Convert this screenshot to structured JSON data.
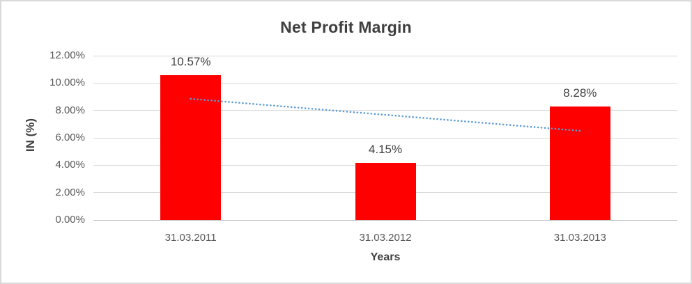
{
  "window": {
    "background": "#FFFFFF",
    "border_color": "#D9D9D9"
  },
  "chart_data": {
    "type": "bar",
    "title": "Net Profit Margin",
    "xlabel": "Years",
    "ylabel": "IN (%)",
    "categories": [
      "31.03.2011",
      "31.03.2012",
      "31.03.2013"
    ],
    "values": [
      10.57,
      4.15,
      8.28
    ],
    "value_labels": [
      "10.57%",
      "4.15%",
      "8.28%"
    ],
    "ylim": [
      0,
      12
    ],
    "yticks": [
      {
        "value": 0,
        "label": "0.00%"
      },
      {
        "value": 2,
        "label": "2.00%"
      },
      {
        "value": 4,
        "label": "4.00%"
      },
      {
        "value": 6,
        "label": "6.00%"
      },
      {
        "value": 8,
        "label": "8.00%"
      },
      {
        "value": 10,
        "label": "10.00%"
      },
      {
        "value": 12,
        "label": "12.00%"
      }
    ],
    "grid": true,
    "legend": false,
    "bar_color": "#FF0000",
    "trendline": {
      "type": "linear",
      "style": "dotted",
      "color": "#5B9BD5",
      "start_value": 8.85,
      "end_value": 6.51
    },
    "colors": {
      "title_text": "#3F3F3F",
      "axis_title_text": "#404040",
      "axis_text": "#595959",
      "data_label_text": "#404040",
      "gridline": "#D9D9D9",
      "axis_line": "#BFBFBF"
    }
  }
}
